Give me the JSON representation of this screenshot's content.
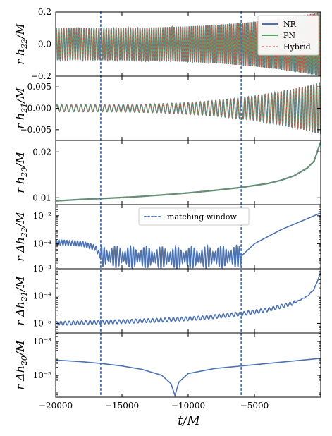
{
  "chart_data": {
    "type": "line",
    "xlabel": "t/M",
    "xlim": [
      -20000,
      0
    ],
    "x_ticks": [
      -20000,
      -15000,
      -10000,
      -5000
    ],
    "matching_window": {
      "label": "matching window",
      "t_start": -16600,
      "t_end": -6000,
      "color": "#4c72b0"
    },
    "legend": {
      "placement": "top-right",
      "entries": [
        {
          "name": "NR",
          "color": "#4c72b0",
          "style": "solid"
        },
        {
          "name": "PN",
          "color": "#55a868",
          "style": "solid"
        },
        {
          "name": "Hybrid",
          "color": "#c44e52",
          "style": "dashed"
        }
      ]
    },
    "panels": [
      {
        "id": "h22",
        "ylabel": "r h_22/M",
        "yscale": "linear",
        "ylim": [
          -0.2,
          0.2
        ],
        "y_ticks": [
          -0.2,
          0.0,
          0.2
        ],
        "y_tick_labels": [
          "−0.2",
          "0.0",
          "0.2"
        ],
        "kind": "oscillation",
        "series": [
          {
            "name": "NR/PN/Hybrid overlay",
            "amplitude_start": 0.1,
            "amplitude_end": 0.2,
            "cycles": 105
          }
        ]
      },
      {
        "id": "h21",
        "ylabel": "r h_21/M",
        "yscale": "linear",
        "ylim": [
          -0.0075,
          0.0075
        ],
        "y_ticks": [
          -0.005,
          0.0,
          0.005
        ],
        "y_tick_labels": [
          "−0.005",
          "0.000",
          "0.005"
        ],
        "kind": "oscillation",
        "series": [
          {
            "name": "NR/PN/Hybrid overlay",
            "amplitude_start": 0.0008,
            "amplitude_end": 0.006,
            "cycles": 55
          }
        ]
      },
      {
        "id": "h20",
        "ylabel": "r h_20/M",
        "yscale": "linear",
        "ylim": [
          0.0085,
          0.0225
        ],
        "y_ticks": [
          0.01,
          0.02
        ],
        "y_tick_labels": [
          "0.01",
          "0.02"
        ],
        "kind": "monotonic",
        "series": [
          {
            "name": "NR/PN/Hybrid overlay",
            "x": [
              -20000,
              -18000,
              -16000,
              -14000,
              -12000,
              -10000,
              -8000,
              -6000,
              -4000,
              -3000,
              -2000,
              -1000,
              -500,
              0
            ],
            "y": [
              0.0093,
              0.00965,
              0.0099,
              0.0102,
              0.0106,
              0.01105,
              0.0116,
              0.01225,
              0.0131,
              0.0138,
              0.0148,
              0.0165,
              0.018,
              0.0222
            ]
          }
        ]
      },
      {
        "id": "dh22",
        "ylabel": "r Δh_22/M",
        "yscale": "log",
        "ylim_exp": [
          -5.8,
          -1.2
        ],
        "y_ticks_exp": [
          -4,
          -2
        ],
        "y_tick_labels": [
          "10⁻⁴",
          "10⁻²"
        ],
        "kind": "residual",
        "series": [
          {
            "name": "Δh22",
            "x": [
              -20000,
              -18000,
              -17000,
              -16600,
              -14000,
              -11000,
              -8000,
              -6000,
              -5000,
              -3000,
              -1000,
              0
            ],
            "y_log10": [
              -3.9,
              -4.0,
              -4.3,
              -4.9,
              -4.95,
              -5.0,
              -4.95,
              -4.9,
              -4.0,
              -3.0,
              -2.2,
              -1.8
            ]
          }
        ]
      },
      {
        "id": "dh21",
        "ylabel": "r Δh_21/M",
        "yscale": "log",
        "ylim_exp": [
          -5.35,
          -3.0
        ],
        "y_ticks_exp": [
          -5,
          -4,
          -3
        ],
        "y_tick_labels": [
          "10⁻⁵",
          "10⁻⁴",
          "10⁻³"
        ],
        "kind": "residual",
        "series": [
          {
            "name": "Δh21",
            "x": [
              -20000,
              -16000,
              -12000,
              -9000,
              -6000,
              -4000,
              -2000,
              -1000,
              -500,
              0
            ],
            "y_log10": [
              -5.0,
              -4.95,
              -4.88,
              -4.8,
              -4.65,
              -4.5,
              -4.25,
              -4.0,
              -3.75,
              -3.15
            ]
          }
        ]
      },
      {
        "id": "dh20",
        "ylabel": "r Δh_20/M",
        "yscale": "log",
        "ylim_exp": [
          -6.3,
          -2.5
        ],
        "y_ticks_exp": [
          -5,
          -3
        ],
        "y_tick_labels": [
          "10⁻⁵",
          "10⁻³"
        ],
        "kind": "residual",
        "series": [
          {
            "name": "Δh20",
            "x": [
              -20000,
              -18000,
              -16600,
              -15000,
              -13500,
              -12000,
              -11300,
              -11000,
              -10700,
              -10000,
              -8000,
              -6000,
              -4000,
              -2000,
              0
            ],
            "y_log10": [
              -4.1,
              -4.2,
              -4.3,
              -4.45,
              -4.65,
              -5.0,
              -5.5,
              -6.2,
              -5.4,
              -4.9,
              -4.6,
              -4.45,
              -4.3,
              -4.15,
              -4.0
            ]
          }
        ]
      }
    ]
  }
}
